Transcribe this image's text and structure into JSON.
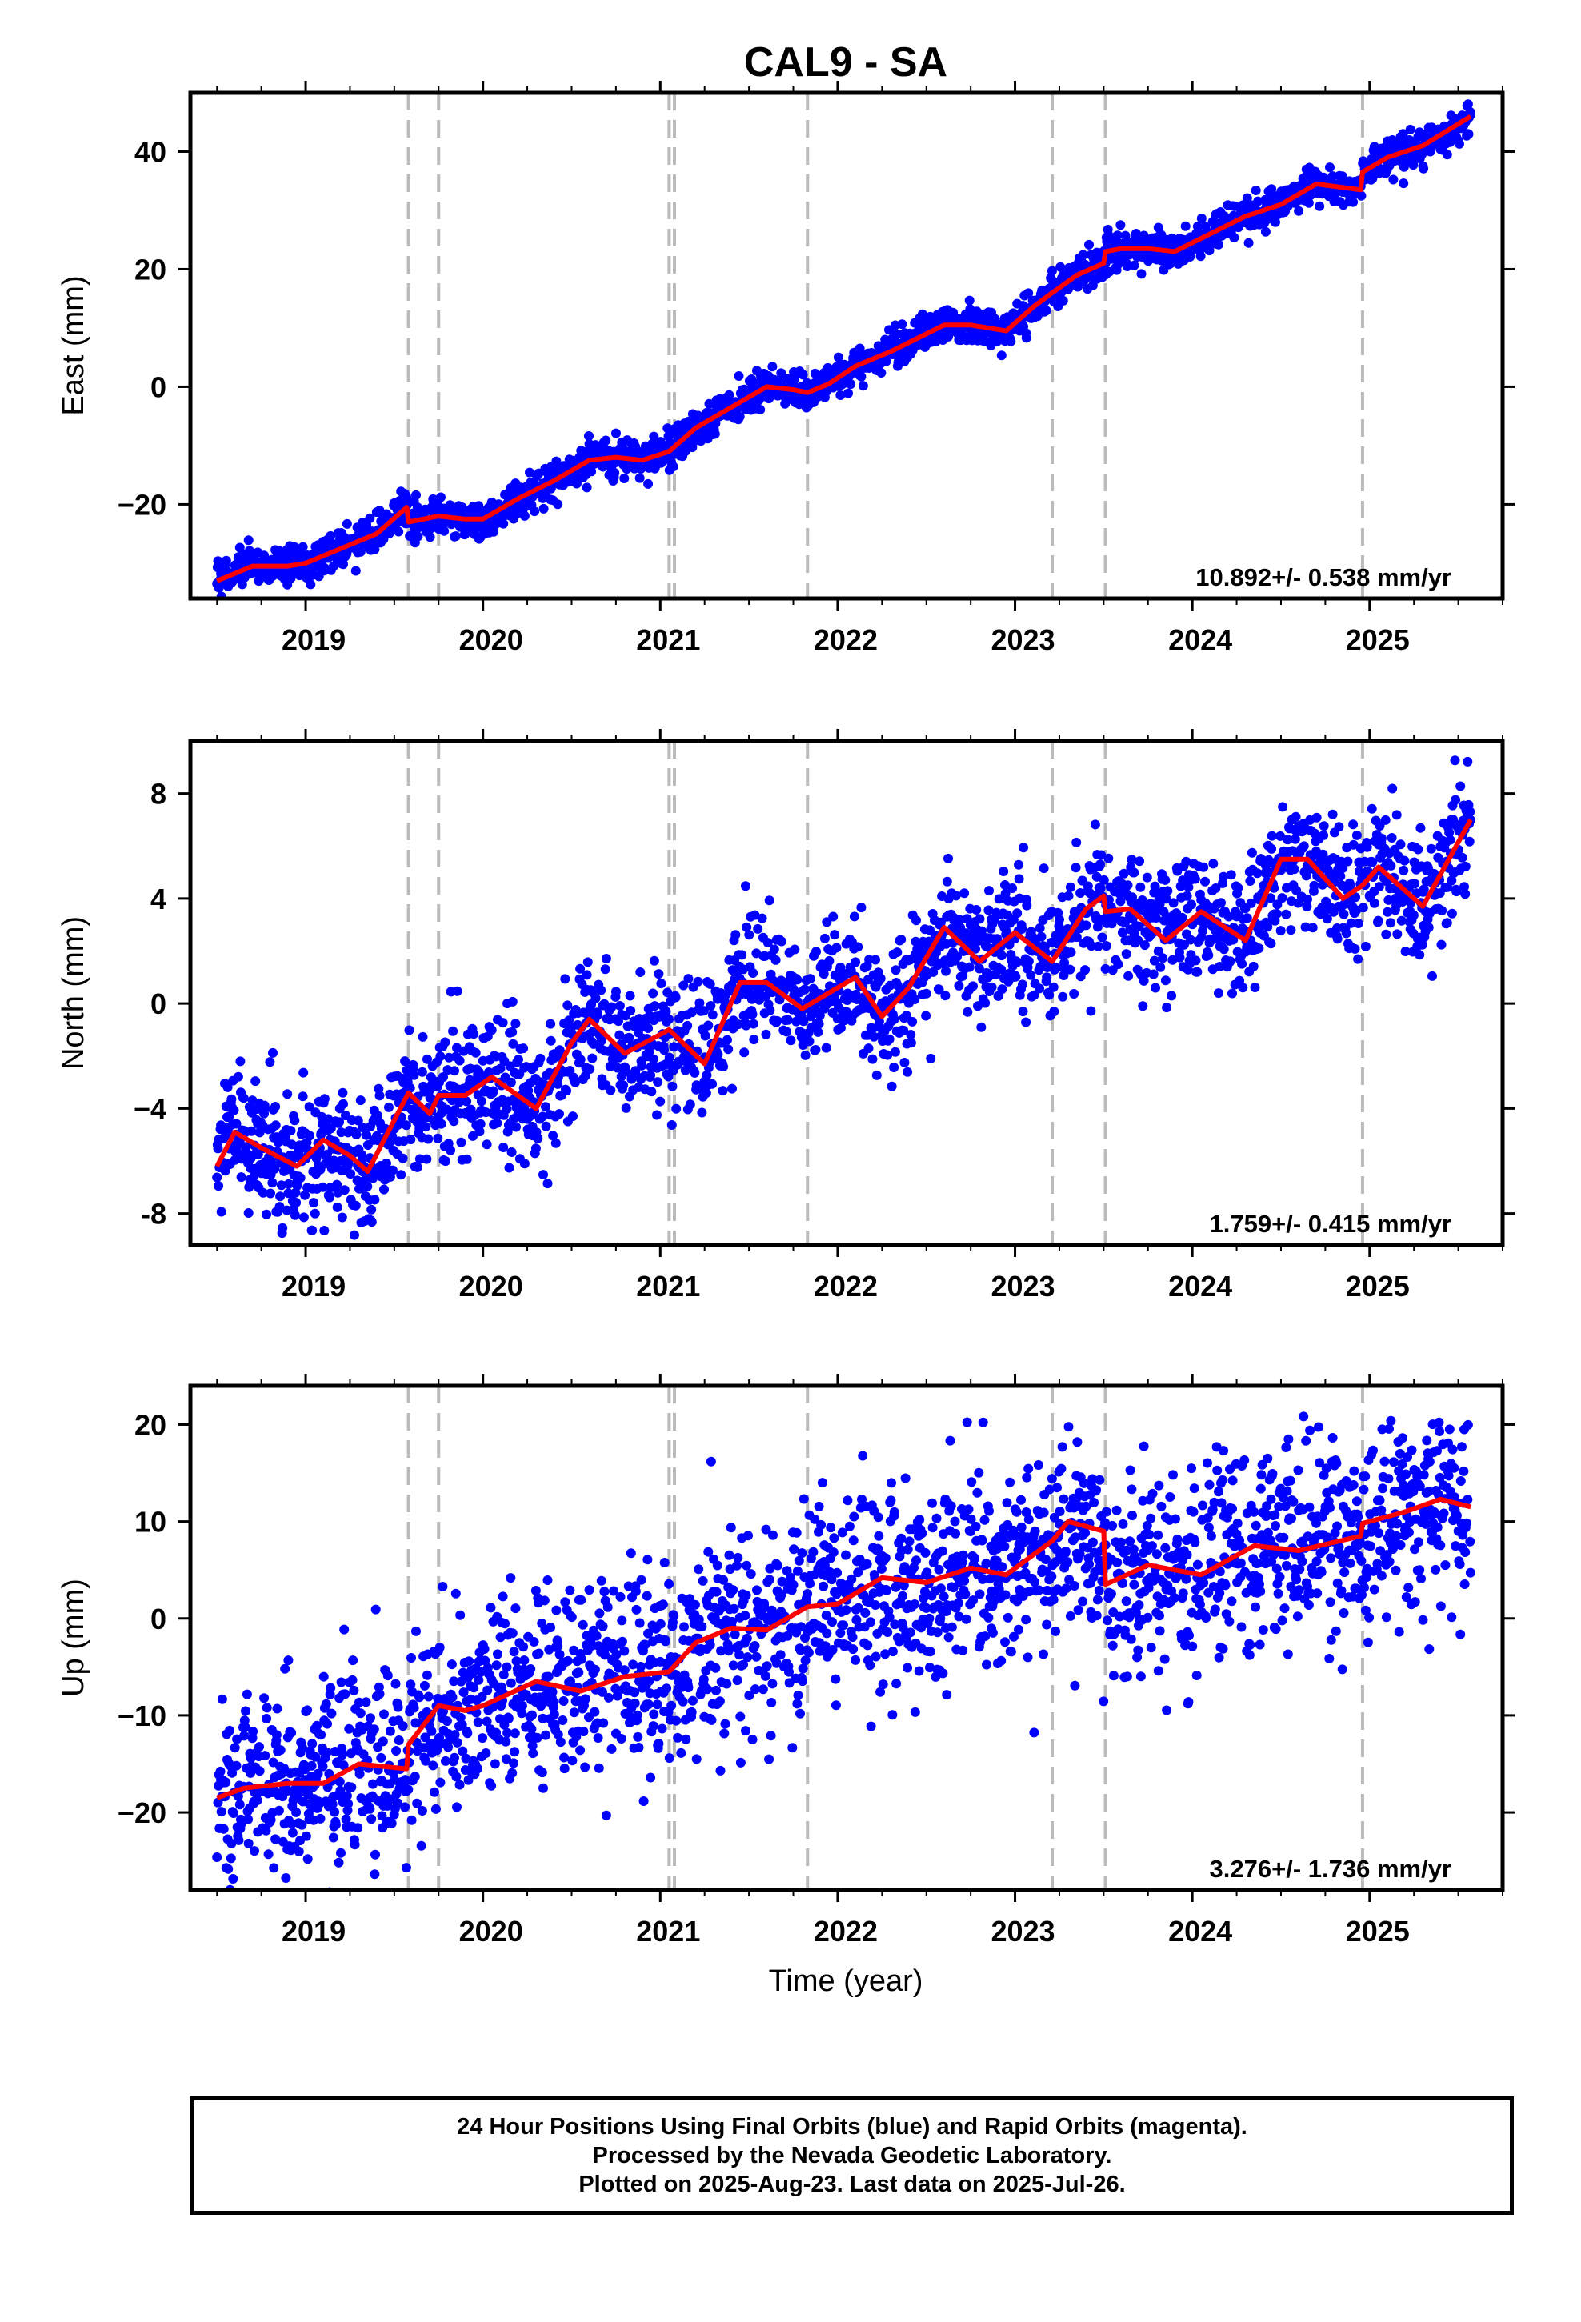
{
  "title": "CAL9 - SA",
  "xlabel": "Time (year)",
  "footer": {
    "line1": "24 Hour Positions Using Final Orbits (blue) and Rapid Orbits (magenta).",
    "line2": "Processed by the Nevada Geodetic Laboratory.",
    "line3": "Plotted on 2025-Aug-23. Last data on 2025-Jul-26."
  },
  "colors": {
    "points": "#0000ff",
    "model": "#ff0000",
    "event_lines": "#bbbbbb",
    "frame": "#000000"
  },
  "chart_data": [
    {
      "type": "scatter",
      "name": "east",
      "ylabel": "East (mm)",
      "xlim": [
        2018.35,
        2025.75
      ],
      "ylim": [
        -36,
        50
      ],
      "yticks": [
        -20,
        0,
        20,
        40
      ],
      "ytick_labels": [
        "−20",
        "0",
        "20",
        "40"
      ],
      "xticks": [
        2019,
        2020,
        2021,
        2022,
        2023,
        2024,
        2025
      ],
      "rate_label": "10.892+/- 0.538 mm/yr",
      "event_lines": [
        2019.58,
        2019.75,
        2021.05,
        2021.08,
        2021.83,
        2023.21,
        2023.51,
        2024.96
      ],
      "model": {
        "x": [
          2018.5,
          2018.7,
          2018.9,
          2019.0,
          2019.2,
          2019.4,
          2019.57,
          2019.58,
          2019.75,
          2019.9,
          2020.0,
          2020.2,
          2020.4,
          2020.6,
          2020.75,
          2020.9,
          2021.05,
          2021.2,
          2021.4,
          2021.6,
          2021.75,
          2021.83,
          2021.95,
          2022.1,
          2022.3,
          2022.6,
          2022.75,
          2022.95,
          2023.1,
          2023.21,
          2023.35,
          2023.5,
          2023.51,
          2023.6,
          2023.75,
          2023.9,
          2024.1,
          2024.3,
          2024.5,
          2024.7,
          2024.95,
          2024.96,
          2025.1,
          2025.3,
          2025.57
        ],
        "y": [
          -33,
          -30.5,
          -30.5,
          -30,
          -27.5,
          -25,
          -20.5,
          -23,
          -22,
          -22.5,
          -22.5,
          -19,
          -16,
          -12.5,
          -12,
          -12.5,
          -11,
          -7,
          -3.5,
          0,
          -0.5,
          -1,
          0.5,
          3.5,
          6,
          10.5,
          10.5,
          9.5,
          13.5,
          16,
          19,
          21,
          23,
          23.5,
          23.5,
          23,
          26,
          29,
          31,
          34.5,
          33.5,
          36.5,
          39,
          41,
          46
        ]
      },
      "scatter": {
        "scale": 1.5
      }
    },
    {
      "type": "scatter",
      "name": "north",
      "ylabel": "North (mm)",
      "xlim": [
        2018.35,
        2025.75
      ],
      "ylim": [
        -9.2,
        10
      ],
      "yticks": [
        -8,
        -4,
        0,
        4,
        8
      ],
      "ytick_labels": [
        "-8",
        "−4",
        "0",
        "4",
        "8"
      ],
      "xticks": [
        2019,
        2020,
        2021,
        2022,
        2023,
        2024,
        2025
      ],
      "rate_label": "1.759+/- 0.415 mm/yr",
      "event_lines": [
        2019.58,
        2019.75,
        2021.05,
        2021.08,
        2021.83,
        2023.21,
        2023.51,
        2024.96
      ],
      "model": {
        "x": [
          2018.5,
          2018.6,
          2018.75,
          2018.95,
          2019.1,
          2019.25,
          2019.35,
          2019.58,
          2019.7,
          2019.75,
          2019.9,
          2020.05,
          2020.3,
          2020.5,
          2020.6,
          2020.8,
          2021.05,
          2021.25,
          2021.45,
          2021.6,
          2021.8,
          2021.95,
          2022.1,
          2022.25,
          2022.4,
          2022.6,
          2022.8,
          2023.0,
          2023.21,
          2023.4,
          2023.5,
          2023.51,
          2023.65,
          2023.85,
          2024.05,
          2024.3,
          2024.5,
          2024.65,
          2024.85,
          2024.96,
          2025.05,
          2025.3,
          2025.57
        ],
        "y": [
          -6.2,
          -4.9,
          -5.5,
          -6.2,
          -5.2,
          -5.8,
          -6.4,
          -3.4,
          -4.2,
          -3.5,
          -3.5,
          -2.8,
          -4,
          -1.5,
          -0.6,
          -1.9,
          -1,
          -2.3,
          0.8,
          0.8,
          -0.2,
          0.4,
          1,
          -0.5,
          0.6,
          2.9,
          1.6,
          2.7,
          1.6,
          3.6,
          4.1,
          3.5,
          3.6,
          2.4,
          3.5,
          2.4,
          5.5,
          5.5,
          4,
          4.5,
          5.2,
          3.7,
          7
        ]
      },
      "scatter": {
        "scale": 1.2
      }
    },
    {
      "type": "scatter",
      "name": "up",
      "ylabel": "Up (mm)",
      "xlim": [
        2018.35,
        2025.75
      ],
      "ylim": [
        -28,
        24
      ],
      "yticks": [
        -20,
        -10,
        0,
        10,
        20
      ],
      "ytick_labels": [
        "−20",
        "−10",
        "0",
        "10",
        "20"
      ],
      "xticks": [
        2019,
        2020,
        2021,
        2022,
        2023,
        2024,
        2025
      ],
      "rate_label": "3.276+/- 1.736 mm/yr",
      "event_lines": [
        2019.58,
        2019.75,
        2021.05,
        2021.08,
        2021.83,
        2023.21,
        2023.51,
        2024.96
      ],
      "model": {
        "x": [
          2018.5,
          2018.65,
          2018.9,
          2019.1,
          2019.3,
          2019.57,
          2019.58,
          2019.75,
          2019.9,
          2020.0,
          2020.3,
          2020.55,
          2020.8,
          2021.05,
          2021.2,
          2021.4,
          2021.6,
          2021.83,
          2022.0,
          2022.25,
          2022.5,
          2022.75,
          2022.95,
          2023.21,
          2023.3,
          2023.5,
          2023.51,
          2023.75,
          2024.05,
          2024.35,
          2024.6,
          2024.95,
          2024.96,
          2025.2,
          2025.4,
          2025.57
        ],
        "y": [
          -18.5,
          -17.5,
          -17,
          -17,
          -15,
          -15.5,
          -13,
          -9,
          -9.5,
          -9,
          -6.5,
          -7.5,
          -6,
          -5.5,
          -2.5,
          -1,
          -1.2,
          1.2,
          1.5,
          4.2,
          3.7,
          5.2,
          4.5,
          8,
          10,
          9,
          3.5,
          5.5,
          4.5,
          7.5,
          7,
          8.5,
          9.8,
          11,
          12.3,
          11.5
        ]
      },
      "scatter": {
        "scale": 5.2
      }
    }
  ]
}
